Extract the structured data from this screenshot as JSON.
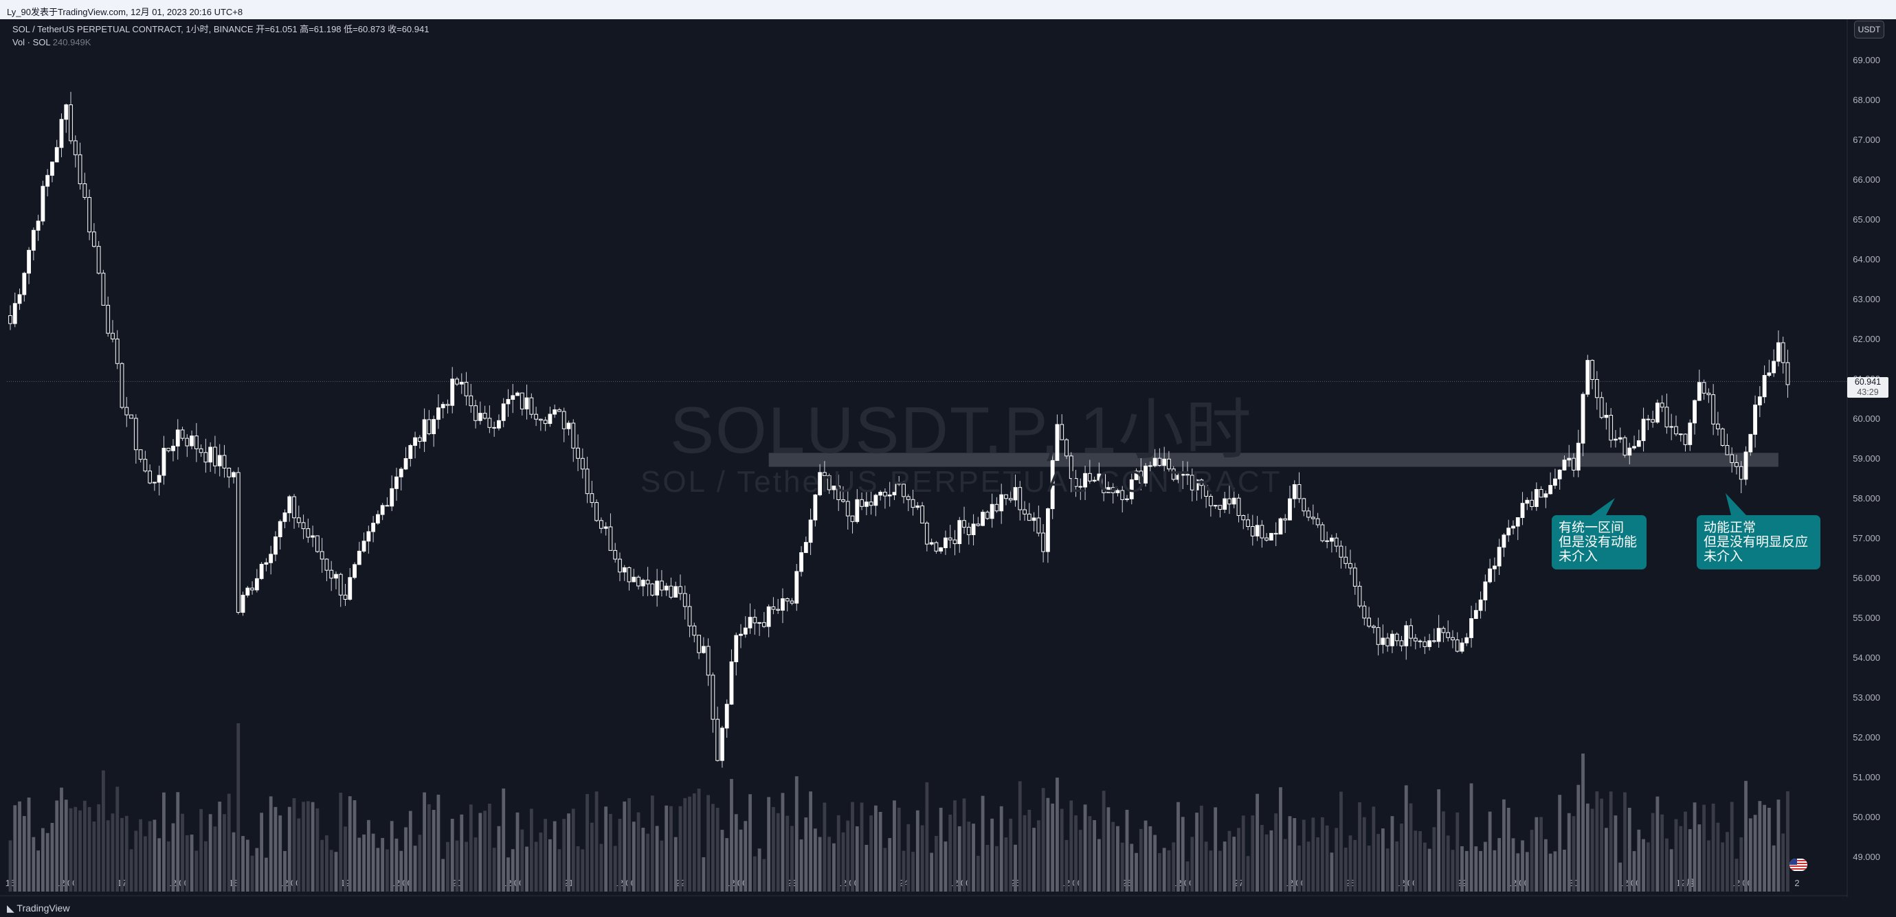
{
  "header": {
    "credit": "Ly_90发表于TradingView.com,  12月 01, 2023 20:16 UTC+8"
  },
  "legend": {
    "symbol_line": "SOL / TetherUS PERPETUAL CONTRACT, 1小时, BINANCE  开=61.051  高=61.198  低=60.873  收=60.941",
    "vol_label": "Vol · SOL",
    "vol_value": "240.949K"
  },
  "currency_button": "USDT",
  "price_tag": {
    "price": "60.941",
    "countdown": "43:29"
  },
  "watermark": {
    "line1": "SOLUSDT.P, 1小时",
    "line2": "SOL / TetherUS PERPETUAL CONTRACT"
  },
  "annotations": [
    {
      "text": "有统一区间\n但是没有动能\n未介入"
    },
    {
      "text": "动能正常\n但是没有明显反应\n未介入"
    }
  ],
  "footer": {
    "brand": "TradingView"
  },
  "colors": {
    "background": "#131722",
    "up": "#ffffff",
    "down": "#ffffff",
    "zone": "#3b3f4a",
    "note": "#0a7b83"
  },
  "chart_data": {
    "type": "candlestick",
    "title": "SOLUSDT.P, 1小时",
    "y_ticks": [
      "69.000",
      "68.000",
      "67.000",
      "66.000",
      "65.000",
      "64.000",
      "63.000",
      "62.000",
      "61.000",
      "60.000",
      "59.000",
      "58.000",
      "57.000",
      "56.000",
      "55.000",
      "54.000",
      "53.000",
      "52.000",
      "51.000",
      "50.000",
      "49.000"
    ],
    "x_ticks": [
      "16",
      "12:00",
      "17",
      "12:00",
      "18",
      "12:00",
      "19",
      "12:00",
      "20",
      "12:00",
      "21",
      "12:00",
      "22",
      "12:00",
      "23",
      "12:00",
      "24",
      "12:00",
      "25",
      "12:00",
      "26",
      "12:00",
      "27",
      "12:00",
      "28",
      "12:00",
      "29",
      "12:00",
      "30",
      "12:00",
      "12月",
      "12:00",
      "2"
    ],
    "ylim": [
      48.6,
      69.4
    ],
    "current_price": 60.941,
    "zone": {
      "from": 58.8,
      "to": 59.15,
      "start": "22 19:00",
      "end": "12月 20:00"
    },
    "key_points": [
      {
        "t": "16 00:00",
        "close": 62.4
      },
      {
        "t": "16 06:00",
        "close": 65.2
      },
      {
        "t": "16 12:00",
        "close": 67.8
      },
      {
        "t": "16 18:00",
        "close": 64.3
      },
      {
        "t": "17 00:00",
        "close": 60.5
      },
      {
        "t": "17 06:00",
        "close": 58.3
      },
      {
        "t": "17 12:00",
        "close": 59.7
      },
      {
        "t": "18 00:00",
        "close": 58.6
      },
      {
        "t": "18 01:00",
        "close": 55.2
      },
      {
        "t": "18 12:00",
        "close": 57.8
      },
      {
        "t": "19 00:00",
        "close": 55.6
      },
      {
        "t": "19 12:00",
        "close": 58.9
      },
      {
        "t": "20 00:00",
        "close": 60.9
      },
      {
        "t": "20 06:00",
        "close": 59.8
      },
      {
        "t": "20 12:00",
        "close": 60.5
      },
      {
        "t": "21 00:00",
        "close": 59.9
      },
      {
        "t": "21 06:00",
        "close": 57.6
      },
      {
        "t": "21 12:00",
        "close": 56.2
      },
      {
        "t": "22 00:00",
        "close": 55.5
      },
      {
        "t": "22 06:00",
        "close": 53.8
      },
      {
        "t": "22 08:00",
        "close": 51.6
      },
      {
        "t": "22 12:00",
        "close": 54.6
      },
      {
        "t": "23 00:00",
        "close": 55.4
      },
      {
        "t": "23 06:00",
        "close": 58.5
      },
      {
        "t": "23 12:00",
        "close": 57.6
      },
      {
        "t": "24 00:00",
        "close": 58.3
      },
      {
        "t": "24 06:00",
        "close": 56.8
      },
      {
        "t": "24 12:00",
        "close": 57.2
      },
      {
        "t": "25 00:00",
        "close": 58.1
      },
      {
        "t": "25 06:00",
        "close": 56.9
      },
      {
        "t": "25 09:00",
        "close": 60.0
      },
      {
        "t": "25 12:00",
        "close": 58.6
      },
      {
        "t": "26 00:00",
        "close": 58.2
      },
      {
        "t": "26 06:00",
        "close": 59.1
      },
      {
        "t": "26 12:00",
        "close": 58.4
      },
      {
        "t": "27 00:00",
        "close": 57.7
      },
      {
        "t": "27 06:00",
        "close": 56.8
      },
      {
        "t": "27 12:00",
        "close": 58.1
      },
      {
        "t": "28 00:00",
        "close": 56.2
      },
      {
        "t": "28 06:00",
        "close": 54.2
      },
      {
        "t": "28 12:00",
        "close": 54.6
      },
      {
        "t": "29 00:00",
        "close": 54.4
      },
      {
        "t": "29 06:00",
        "close": 56.2
      },
      {
        "t": "29 12:00",
        "close": 57.8
      },
      {
        "t": "30 00:00",
        "close": 58.9
      },
      {
        "t": "30 03:00",
        "close": 61.2
      },
      {
        "t": "30 06:00",
        "close": 60.0
      },
      {
        "t": "30 12:00",
        "close": 59.2
      },
      {
        "t": "30 18:00",
        "close": 60.3
      },
      {
        "t": "12月 00:00",
        "close": 59.6
      },
      {
        "t": "12月 03:00",
        "close": 60.9
      },
      {
        "t": "12月 09:00",
        "close": 59.3
      },
      {
        "t": "12月 12:00",
        "close": 58.7
      },
      {
        "t": "12月 15:00",
        "close": 60.4
      },
      {
        "t": "12月 20:00",
        "close": 61.7
      },
      {
        "t": "12月 22:00",
        "close": 60.941
      }
    ]
  }
}
